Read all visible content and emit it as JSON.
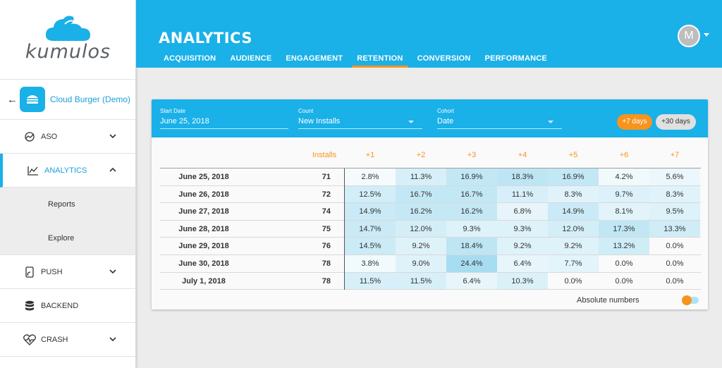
{
  "sidebar": {
    "logo_text": "kumulos",
    "app_name": "Cloud Burger (Demo)",
    "nav": {
      "aso": "ASO",
      "analytics": "ANALYTICS",
      "reports": "Reports",
      "explore": "Explore",
      "push": "PUSH",
      "backend": "BACKEND",
      "crash": "CRASH"
    }
  },
  "header": {
    "title": "ANALYTICS",
    "avatar_initial": "M",
    "tabs": [
      "ACQUISITION",
      "AUDIENCE",
      "ENGAGEMENT",
      "RETENTION",
      "CONVERSION",
      "PERFORMANCE"
    ],
    "active_tab": "RETENTION"
  },
  "filters": {
    "start_date_label": "Start Date",
    "start_date_value": "June 25, 2018",
    "count_label": "Count",
    "count_value": "New Installs",
    "cohort_label": "Cohort",
    "cohort_value": "Date",
    "btn_7": "+7 days",
    "btn_30": "+30 days"
  },
  "table": {
    "installs_header": "Installs",
    "day_headers": [
      "+1",
      "+2",
      "+3",
      "+4",
      "+5",
      "+6",
      "+7"
    ],
    "rows": [
      {
        "date": "June 25, 2018",
        "installs": "71",
        "values": [
          "2.8%",
          "11.3%",
          "16.9%",
          "18.3%",
          "16.9%",
          "4.2%",
          "5.6%"
        ]
      },
      {
        "date": "June 26, 2018",
        "installs": "72",
        "values": [
          "12.5%",
          "16.7%",
          "16.7%",
          "11.1%",
          "8.3%",
          "9.7%",
          "8.3%"
        ]
      },
      {
        "date": "June 27, 2018",
        "installs": "74",
        "values": [
          "14.9%",
          "16.2%",
          "16.2%",
          "6.8%",
          "14.9%",
          "8.1%",
          "9.5%"
        ]
      },
      {
        "date": "June 28, 2018",
        "installs": "75",
        "values": [
          "14.7%",
          "12.0%",
          "9.3%",
          "9.3%",
          "12.0%",
          "17.3%",
          "13.3%"
        ]
      },
      {
        "date": "June 29, 2018",
        "installs": "76",
        "values": [
          "14.5%",
          "9.2%",
          "18.4%",
          "9.2%",
          "9.2%",
          "13.2%",
          "0.0%"
        ]
      },
      {
        "date": "June 30, 2018",
        "installs": "78",
        "values": [
          "3.8%",
          "9.0%",
          "24.4%",
          "6.4%",
          "7.7%",
          "0.0%",
          "0.0%"
        ]
      },
      {
        "date": "July 1, 2018",
        "installs": "78",
        "values": [
          "11.5%",
          "11.5%",
          "6.4%",
          "10.3%",
          "0.0%",
          "0.0%",
          "0.0%"
        ]
      }
    ],
    "absolute_numbers_label": "Absolute numbers"
  },
  "colors": {
    "brand_blue": "#1ab0e8",
    "accent_orange": "#f7941d"
  }
}
